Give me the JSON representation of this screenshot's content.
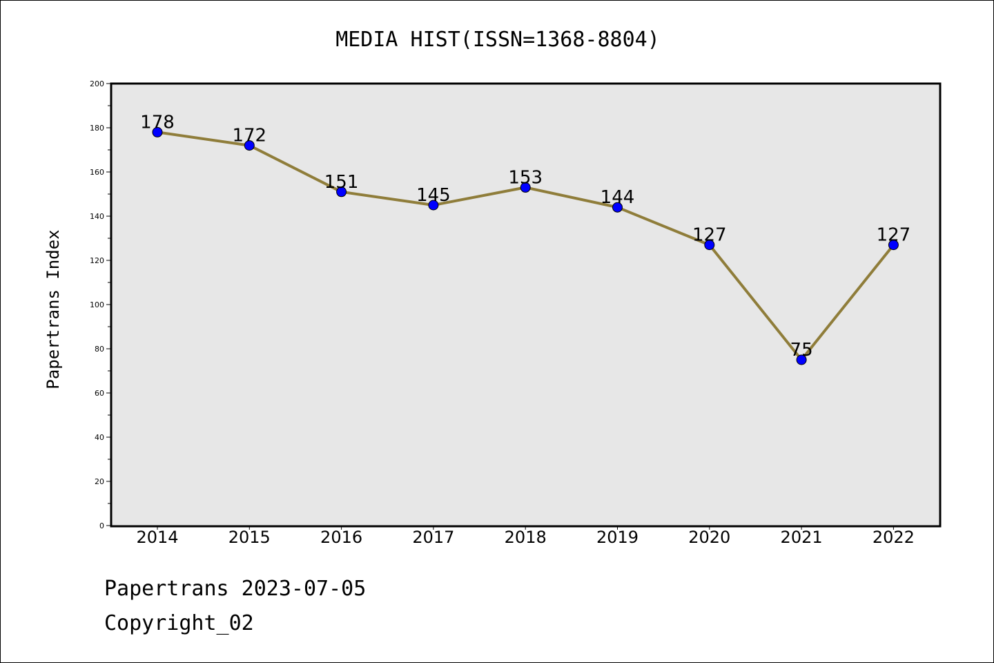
{
  "chart_data": {
    "type": "line",
    "title": "MEDIA HIST(ISSN=1368-8804)",
    "xlabel": "",
    "ylabel": "Papertrans Index",
    "categories": [
      "2014",
      "2015",
      "2016",
      "2017",
      "2018",
      "2019",
      "2020",
      "2021",
      "2022"
    ],
    "series": [
      {
        "values": [
          178,
          172,
          151,
          145,
          153,
          144,
          127,
          75,
          127
        ]
      }
    ],
    "ylim": [
      0,
      200
    ],
    "yticks": [
      0,
      20,
      40,
      60,
      80,
      100,
      120,
      140,
      160,
      180,
      200
    ],
    "data_labels": true,
    "grid": false,
    "line_color": "#8f7d3a",
    "marker_color": "#0000ff",
    "plot_background": "#e7e7e7"
  },
  "footer": {
    "line1": "Papertrans 2023-07-05",
    "line2": "Copyright_02"
  }
}
